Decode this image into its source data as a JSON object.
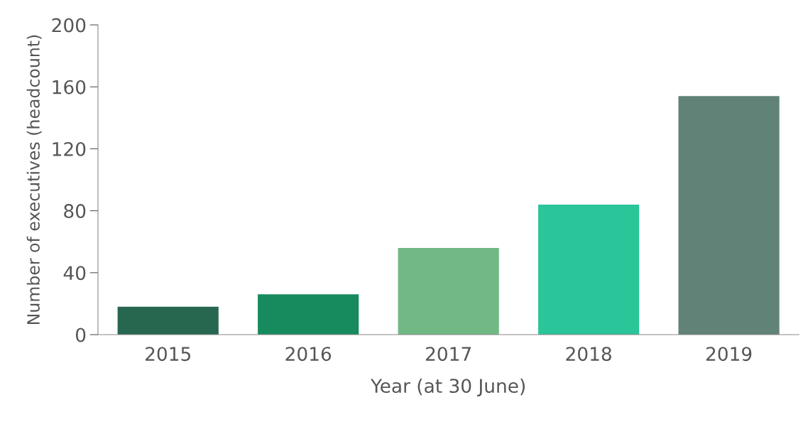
{
  "chart_data": {
    "type": "bar",
    "xlabel": "Year (at 30 June)",
    "ylabel": "Number of executives (headcount)",
    "categories": [
      "2015",
      "2016",
      "2017",
      "2018",
      "2019"
    ],
    "values": [
      18,
      26,
      56,
      84,
      154
    ],
    "colors": [
      "#276750",
      "#178a5e",
      "#70b985",
      "#2ac598",
      "#608277"
    ],
    "ylim": [
      0,
      200
    ],
    "yticks": [
      0,
      40,
      80,
      120,
      160,
      200
    ],
    "grid": false,
    "legend": false
  }
}
